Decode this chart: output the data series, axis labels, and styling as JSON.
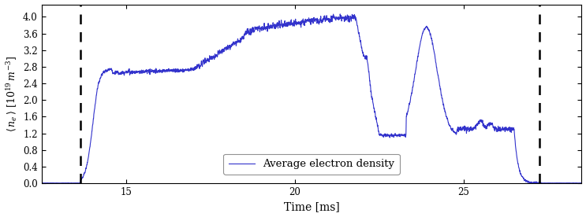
{
  "xlabel": "Time [ms]",
  "ylabel": "< n_e > [10^{19} m^{-3}]",
  "xlim": [
    12.5,
    28.5
  ],
  "ylim": [
    0.0,
    4.3
  ],
  "yticks": [
    0.0,
    0.4,
    0.8,
    1.2,
    1.6,
    2.0,
    2.4,
    2.8,
    3.2,
    3.6,
    4.0
  ],
  "xticks": [
    15,
    20,
    25
  ],
  "line_color": "#3333cc",
  "dashed_line_color": "#000000",
  "dashed_x1": 13.65,
  "dashed_x2": 27.25,
  "legend_label": "Average electron density",
  "background_color": "#ffffff",
  "figsize": [
    7.43,
    2.76
  ],
  "dpi": 100
}
